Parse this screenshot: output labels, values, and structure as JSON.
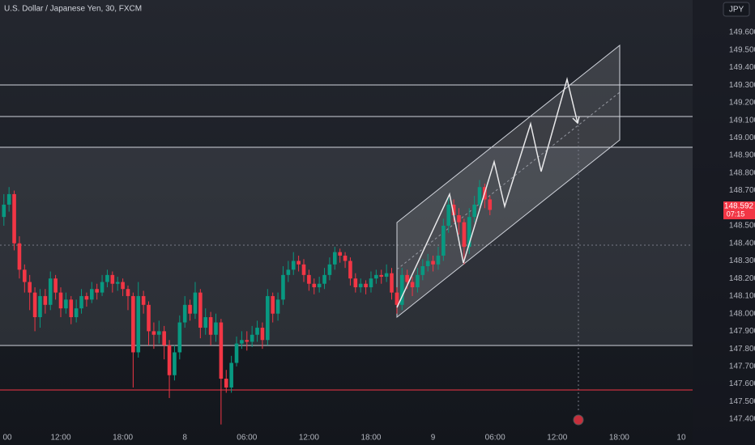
{
  "chart_data": {
    "type": "candlestick",
    "title": "U.S. Dollar / Japanese Yen, 30, FXCM",
    "currency": "JPY",
    "up_color": "#089981",
    "down_color": "#f23645",
    "x": [
      6.5,
      7,
      7.5,
      8,
      8.5,
      9,
      9.5,
      10,
      10.5,
      11,
      11.5,
      12,
      12.5,
      13,
      13.5,
      14,
      14.5,
      15,
      15.5,
      16,
      16.5,
      17,
      17.5,
      18,
      18.5,
      19,
      19.5,
      20,
      20.5,
      21,
      21.5,
      22,
      22.5,
      23,
      23.5,
      24,
      24.5,
      25,
      25.5,
      26,
      26.5,
      27,
      27.5,
      28,
      28.5,
      29,
      29.5,
      30,
      30.5,
      31,
      31.5,
      32,
      32.5,
      33,
      33.5,
      34,
      34.5,
      35,
      35.5,
      36,
      36.5,
      37,
      37.5,
      38,
      38.5,
      39,
      39.5,
      40,
      40.5,
      41,
      41.5,
      42,
      42.5,
      43,
      43.5,
      44,
      44.5,
      45,
      45.5,
      46,
      46.5,
      47,
      47.5,
      48,
      48.5,
      49,
      49.5,
      50,
      50.5,
      51,
      51.5,
      52,
      52.5,
      53,
      53.5
    ],
    "open": [
      148.55,
      148.62,
      148.68,
      148.4,
      148.25,
      148.18,
      148.12,
      147.98,
      148.1,
      148.05,
      148.2,
      148.12,
      148.03,
      148.08,
      147.98,
      148.03,
      148.1,
      148.08,
      148.14,
      148.12,
      148.18,
      148.22,
      148.17,
      148.18,
      148.14,
      148.1,
      147.78,
      148.1,
      148.05,
      147.9,
      147.88,
      147.9,
      147.82,
      147.65,
      147.78,
      147.95,
      148.05,
      148.0,
      148.12,
      147.92,
      147.98,
      147.88,
      147.95,
      147.63,
      147.58,
      147.72,
      147.83,
      147.85,
      147.84,
      147.88,
      147.92,
      147.85,
      148.1,
      148.0,
      148.08,
      148.22,
      148.25,
      148.3,
      148.28,
      148.22,
      148.17,
      148.15,
      148.17,
      148.22,
      148.28,
      148.35,
      148.33,
      148.3,
      148.2,
      148.15,
      148.17,
      148.15,
      148.2,
      148.22,
      148.21,
      148.23,
      148.12,
      148.05,
      148.22,
      148.18,
      148.15,
      148.22,
      148.27,
      148.3,
      148.28,
      148.33,
      148.5,
      148.62,
      148.56,
      148.52,
      148.38,
      148.55,
      148.62,
      148.72,
      148.65
    ],
    "high": [
      148.68,
      148.72,
      148.7,
      148.44,
      148.28,
      148.22,
      148.15,
      148.14,
      148.14,
      148.24,
      148.22,
      148.15,
      148.12,
      148.1,
      148.08,
      148.14,
      148.12,
      148.18,
      148.17,
      148.22,
      148.25,
      148.24,
      148.21,
      148.2,
      148.16,
      148.12,
      148.18,
      148.13,
      148.07,
      147.95,
      147.96,
      147.93,
      147.85,
      147.82,
      147.99,
      148.1,
      148.08,
      148.18,
      148.14,
      148.03,
      148.01,
      148.0,
      147.97,
      147.68,
      147.76,
      147.87,
      147.9,
      147.9,
      147.93,
      147.96,
      147.95,
      148.14,
      148.12,
      148.12,
      148.27,
      148.3,
      148.35,
      148.33,
      148.31,
      148.25,
      148.2,
      148.21,
      148.26,
      148.32,
      148.38,
      148.37,
      148.35,
      148.32,
      148.23,
      148.2,
      148.19,
      148.24,
      148.25,
      148.25,
      148.28,
      148.26,
      148.15,
      148.26,
      148.25,
      148.21,
      148.26,
      148.31,
      148.34,
      148.33,
      148.38,
      148.54,
      148.66,
      148.65,
      148.6,
      148.54,
      148.6,
      148.67,
      148.76,
      148.74,
      148.67
    ],
    "low": [
      148.5,
      148.58,
      148.36,
      148.2,
      148.12,
      148.02,
      147.9,
      147.92,
      148.0,
      148.02,
      148.08,
      147.98,
      148.0,
      147.94,
      147.95,
      148.0,
      148.04,
      148.06,
      148.08,
      148.1,
      148.15,
      148.12,
      148.13,
      148.1,
      148.02,
      147.58,
      147.75,
      148.0,
      147.82,
      147.8,
      147.83,
      147.74,
      147.52,
      147.62,
      147.74,
      147.92,
      147.96,
      147.97,
      147.86,
      147.88,
      147.82,
      147.84,
      147.37,
      147.55,
      147.55,
      147.7,
      147.8,
      147.79,
      147.81,
      147.84,
      147.8,
      147.82,
      147.95,
      147.96,
      148.05,
      148.18,
      148.22,
      148.24,
      148.18,
      148.13,
      148.11,
      148.12,
      148.14,
      148.19,
      148.25,
      148.29,
      148.26,
      148.16,
      148.12,
      148.12,
      148.11,
      148.12,
      148.17,
      148.17,
      148.18,
      148.08,
      148.0,
      148.02,
      148.14,
      148.1,
      148.12,
      148.19,
      148.24,
      148.24,
      148.25,
      148.3,
      148.46,
      148.52,
      148.45,
      148.28,
      148.34,
      148.52,
      148.58,
      148.6,
      148.56
    ],
    "close": [
      148.62,
      148.68,
      148.4,
      148.25,
      148.18,
      148.12,
      147.98,
      148.1,
      148.05,
      148.2,
      148.12,
      148.03,
      148.08,
      147.98,
      148.03,
      148.1,
      148.08,
      148.14,
      148.12,
      148.18,
      148.22,
      148.17,
      148.18,
      148.14,
      148.1,
      147.78,
      148.1,
      148.05,
      147.9,
      147.88,
      147.9,
      147.82,
      147.65,
      147.78,
      147.95,
      148.05,
      148.0,
      148.12,
      147.92,
      147.98,
      147.88,
      147.95,
      147.63,
      147.58,
      147.72,
      147.83,
      147.85,
      147.84,
      147.88,
      147.92,
      147.85,
      148.1,
      148.0,
      148.08,
      148.22,
      148.25,
      148.3,
      148.28,
      148.22,
      148.17,
      148.15,
      148.17,
      148.22,
      148.28,
      148.35,
      148.33,
      148.3,
      148.2,
      148.15,
      148.17,
      148.15,
      148.2,
      148.22,
      148.21,
      148.23,
      148.12,
      148.05,
      148.22,
      148.18,
      148.15,
      148.22,
      148.27,
      148.3,
      148.28,
      148.33,
      148.5,
      148.62,
      148.56,
      148.52,
      148.38,
      148.55,
      148.62,
      148.72,
      148.65,
      148.59
    ],
    "xlim": [
      6.125,
      73.1
    ],
    "ylim": [
      147.345,
      149.784
    ],
    "xticks": [
      {
        "value": 6,
        "label": "00"
      },
      {
        "value": 12,
        "label": "12:00"
      },
      {
        "value": 18,
        "label": "18:00"
      },
      {
        "value": 24,
        "label": "8"
      },
      {
        "value": 30,
        "label": "06:00"
      },
      {
        "value": 36,
        "label": "12:00"
      },
      {
        "value": 42,
        "label": "18:00"
      },
      {
        "value": 48,
        "label": "9"
      },
      {
        "value": 54,
        "label": "06:00"
      },
      {
        "value": 60,
        "label": "12:00"
      },
      {
        "value": 66,
        "label": "18:00"
      },
      {
        "value": 72,
        "label": "10"
      }
    ],
    "yticks": [
      {
        "value": 149.6,
        "label": "149.600"
      },
      {
        "value": 149.5,
        "label": "149.500"
      },
      {
        "value": 149.4,
        "label": "149.400"
      },
      {
        "value": 149.3,
        "label": "149.300"
      },
      {
        "value": 149.2,
        "label": "149.200"
      },
      {
        "value": 149.1,
        "label": "149.100"
      },
      {
        "value": 149,
        "label": "149.000"
      },
      {
        "value": 148.9,
        "label": "148.900"
      },
      {
        "value": 148.8,
        "label": "148.800"
      },
      {
        "value": 148.7,
        "label": "148.700"
      },
      {
        "value": 148.6,
        "label": "148.600"
      },
      {
        "value": 148.5,
        "label": "148.500"
      },
      {
        "value": 148.4,
        "label": "148.400"
      },
      {
        "value": 148.3,
        "label": "148.300"
      },
      {
        "value": 148.2,
        "label": "148.200"
      },
      {
        "value": 148.1,
        "label": "148.100"
      },
      {
        "value": 148,
        "label": "148.000"
      },
      {
        "value": 147.9,
        "label": "147.900"
      },
      {
        "value": 147.8,
        "label": "147.800"
      },
      {
        "value": 147.7,
        "label": "147.700"
      },
      {
        "value": 147.6,
        "label": "147.600"
      },
      {
        "value": 147.5,
        "label": "147.500"
      },
      {
        "value": 147.4,
        "label": "147.400"
      }
    ],
    "last_price": {
      "value": 148.592,
      "label": "148.592"
    },
    "countdown": "07:15",
    "grid": false
  }
}
